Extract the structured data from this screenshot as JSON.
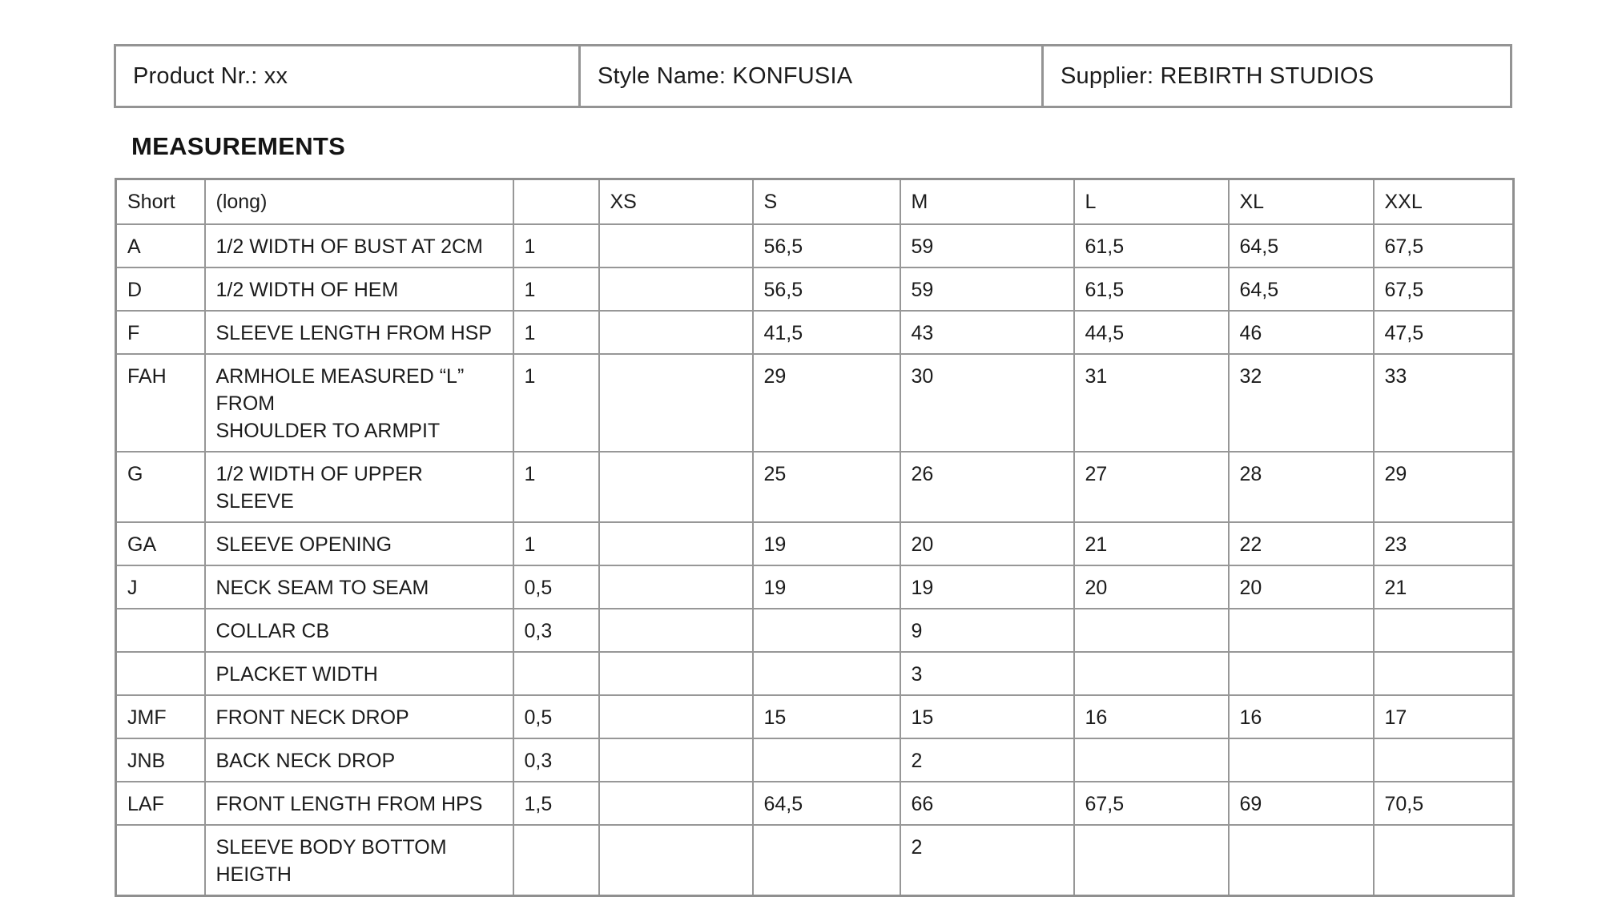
{
  "info_bar": {
    "product_nr": "Product Nr.: xx",
    "style_name": "Style Name: KONFUSIA",
    "supplier": "Supplier: REBIRTH STUDIOS"
  },
  "section": {
    "title": "MEASUREMENTS"
  },
  "table": {
    "columns": [
      "Short",
      "(long)",
      "",
      "XS",
      "S",
      "M",
      "L",
      "XL",
      "XXL"
    ],
    "column_keys": [
      "short",
      "long",
      "tol",
      "xs",
      "s",
      "m",
      "l",
      "xl",
      "xxl"
    ],
    "rows": [
      {
        "short": "A",
        "long": "1/2 WIDTH OF BUST AT 2CM",
        "tol": "1",
        "xs": "",
        "s": "56,5",
        "m": "59",
        "l": "61,5",
        "xl": "64,5",
        "xxl": "67,5"
      },
      {
        "short": "D",
        "long": "1/2 WIDTH OF HEM",
        "tol": "1",
        "xs": "",
        "s": "56,5",
        "m": "59",
        "l": "61,5",
        "xl": "64,5",
        "xxl": "67,5"
      },
      {
        "short": "F",
        "long": "SLEEVE LENGTH FROM HSP",
        "tol": "1",
        "xs": "",
        "s": "41,5",
        "m": "43",
        "l": "44,5",
        "xl": "46",
        "xxl": "47,5"
      },
      {
        "short": "FAH",
        "long": "ARMHOLE MEASURED “L”\nFROM\nSHOULDER TO ARMPIT",
        "tol": "1",
        "xs": "",
        "s": "29",
        "m": "30",
        "l": "31",
        "xl": "32",
        "xxl": "33"
      },
      {
        "short": "G",
        "long": "1/2 WIDTH OF UPPER SLEEVE",
        "tol": "1",
        "xs": "",
        "s": "25",
        "m": "26",
        "l": "27",
        "xl": "28",
        "xxl": "29"
      },
      {
        "short": "GA",
        "long": "SLEEVE OPENING",
        "tol": "1",
        "xs": "",
        "s": "19",
        "m": "20",
        "l": "21",
        "xl": "22",
        "xxl": "23"
      },
      {
        "short": "J",
        "long": "NECK SEAM TO SEAM",
        "tol": "0,5",
        "xs": "",
        "s": "19",
        "m": "19",
        "l": "20",
        "xl": "20",
        "xxl": "21"
      },
      {
        "short": "",
        "long": "COLLAR CB",
        "tol": "0,3",
        "xs": "",
        "s": "",
        "m": "9",
        "l": "",
        "xl": "",
        "xxl": ""
      },
      {
        "short": "",
        "long": "PLACKET WIDTH",
        "tol": "",
        "xs": "",
        "s": "",
        "m": "3",
        "l": "",
        "xl": "",
        "xxl": ""
      },
      {
        "short": "JMF",
        "long": "FRONT NECK DROP",
        "tol": "0,5",
        "xs": "",
        "s": "15",
        "m": "15",
        "l": "16",
        "xl": "16",
        "xxl": "17"
      },
      {
        "short": "JNB",
        "long": "BACK NECK DROP",
        "tol": "0,3",
        "xs": "",
        "s": "",
        "m": "2",
        "l": "",
        "xl": "",
        "xxl": ""
      },
      {
        "short": "LAF",
        "long": "FRONT LENGTH FROM HPS",
        "tol": "1,5",
        "xs": "",
        "s": "64,5",
        "m": "66",
        "l": "67,5",
        "xl": "69",
        "xxl": "70,5"
      },
      {
        "short": "",
        "long": "SLEEVE BODY BOTTOM\nHEIGTH",
        "tol": "",
        "xs": "",
        "s": "",
        "m": "2",
        "l": "",
        "xl": "",
        "xxl": ""
      }
    ]
  }
}
